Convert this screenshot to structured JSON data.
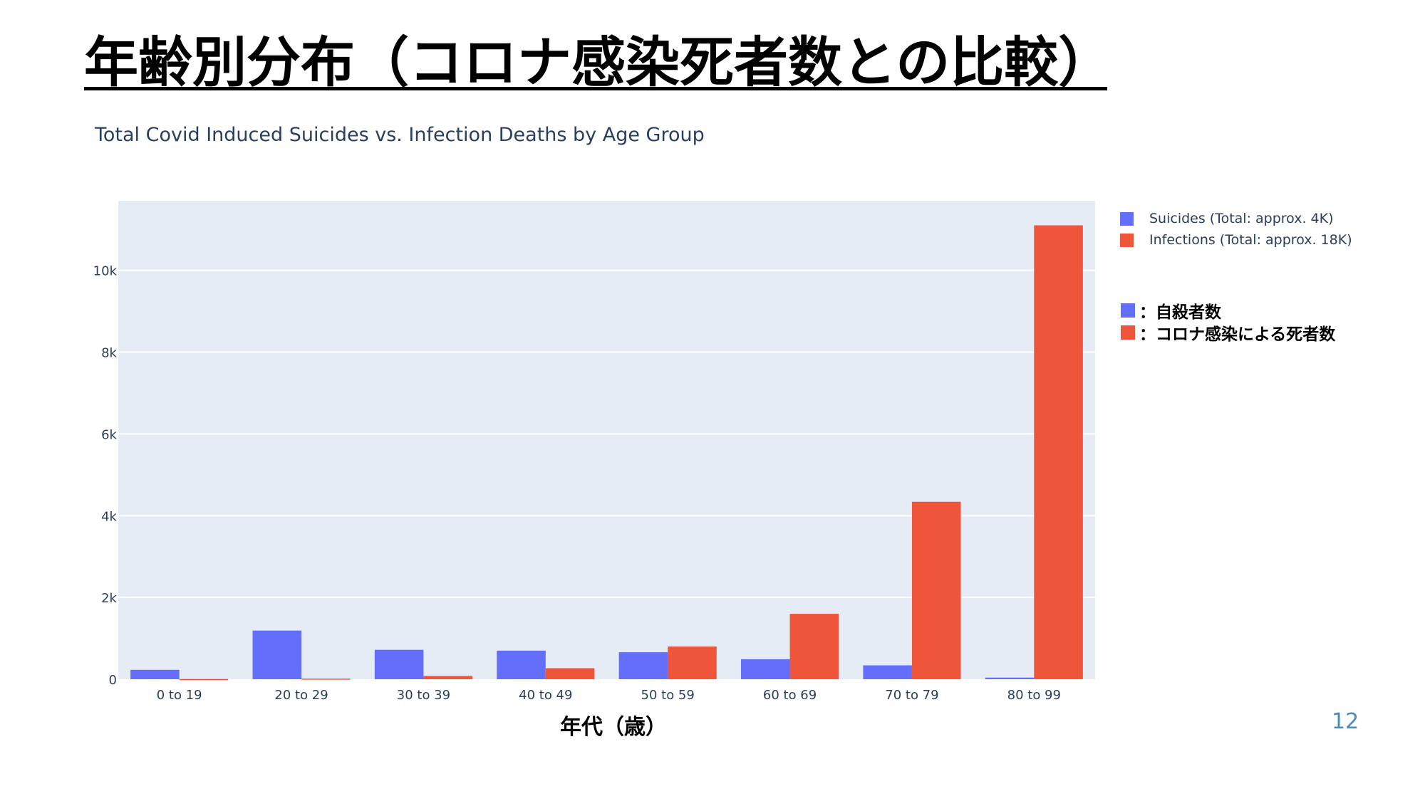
{
  "slide": {
    "title": "年齢別分布（コロナ感染死者数との比較）",
    "page_number": "12"
  },
  "colors": {
    "suicides": "#636efa",
    "infections": "#ef553b",
    "plot_bg": "#e5ecf6",
    "grid": "#ffffff",
    "tick_text": "#2a3f5f"
  },
  "legend_jp": [
    {
      "label": "：自殺者数"
    },
    {
      "label": "：コロナ感染による死者数"
    }
  ],
  "chart_data": {
    "type": "bar",
    "title": "Total Covid Induced Suicides vs. Infection Deaths by Age Group",
    "xlabel": "年代（歳）",
    "ylabel": "",
    "ylim": [
      0,
      11700
    ],
    "yticks": [
      0,
      2000,
      4000,
      6000,
      8000,
      10000
    ],
    "ytick_labels": [
      "0",
      "2k",
      "4k",
      "6k",
      "8k",
      "10k"
    ],
    "grid": true,
    "legend_position": "top-right",
    "categories": [
      "0 to 19",
      "20 to 29",
      "30 to 39",
      "40 to 49",
      "50 to 59",
      "60 to 69",
      "70 to 79",
      "80 to 99"
    ],
    "series": [
      {
        "name": "Suicides (Total: approx. 4K)",
        "values": [
          230,
          1190,
          720,
          700,
          660,
          490,
          340,
          40
        ]
      },
      {
        "name": "Infections (Total: approx. 18K)",
        "values": [
          5,
          15,
          80,
          270,
          800,
          1600,
          4340,
          11100
        ]
      }
    ]
  }
}
